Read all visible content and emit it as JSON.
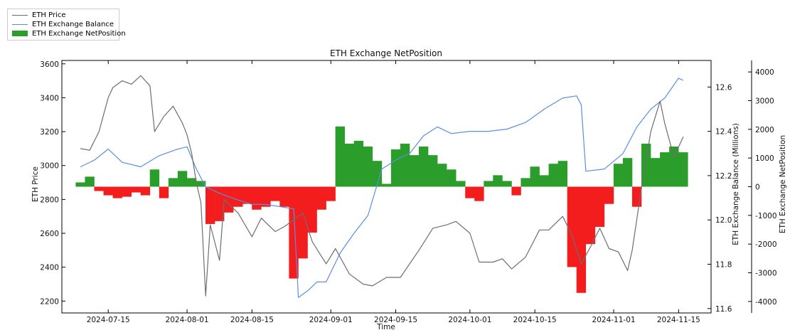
{
  "chart_data": {
    "type": "line",
    "title": "ETH Exchange NetPosition",
    "xlabel": "Time",
    "ylabel_left": "ETH Price",
    "ylabel_right1": "ETH Exchange Balance (Millions)",
    "ylabel_right2": "ETH Exchange NetPosition",
    "x_tick_labels": [
      "2024-07-15",
      "2024-08-01",
      "2024-08-15",
      "2024-09-01",
      "2024-09-15",
      "2024-10-01",
      "2024-10-15",
      "2024-11-01",
      "2024-11-15"
    ],
    "x_range": [
      "2024-07-05",
      "2024-11-22"
    ],
    "price_axis": {
      "range": [
        2130,
        3620
      ],
      "ticks": [
        2200,
        2400,
        2600,
        2800,
        3000,
        3200,
        3400,
        3600
      ]
    },
    "balance_axis": {
      "range": [
        11.58,
        12.72
      ],
      "ticks": [
        11.6,
        11.8,
        12.0,
        12.2,
        12.4,
        12.6
      ]
    },
    "netposition_axis": {
      "range": [
        -4400,
        4400
      ],
      "ticks": [
        -4000,
        -3000,
        -2000,
        -1000,
        0,
        1000,
        2000,
        3000,
        4000
      ]
    },
    "legend": {
      "placement": "top-left",
      "entries": [
        "ETH Price",
        "ETH Exchange Balance",
        "ETH Exchange NetPosition"
      ]
    },
    "colors": {
      "price": "#6e6e6e",
      "balance": "#5b8fe0",
      "positive": "#2a9d2a",
      "negative": "#f41d1d"
    },
    "series": [
      {
        "name": "ETH Price",
        "axis": "left",
        "x": [
          "2024-07-09",
          "2024-07-11",
          "2024-07-13",
          "2024-07-14",
          "2024-07-15",
          "2024-07-16",
          "2024-07-18",
          "2024-07-20",
          "2024-07-22",
          "2024-07-24",
          "2024-07-25",
          "2024-07-27",
          "2024-07-29",
          "2024-07-31",
          "2024-08-01",
          "2024-08-02",
          "2024-08-03",
          "2024-08-04",
          "2024-08-05",
          "2024-08-06",
          "2024-08-08",
          "2024-08-09",
          "2024-08-12",
          "2024-08-15",
          "2024-08-17",
          "2024-08-20",
          "2024-08-22",
          "2024-08-24",
          "2024-08-26",
          "2024-08-28",
          "2024-08-31",
          "2024-09-02",
          "2024-09-05",
          "2024-09-08",
          "2024-09-10",
          "2024-09-13",
          "2024-09-16",
          "2024-09-18",
          "2024-09-20",
          "2024-09-23",
          "2024-09-26",
          "2024-09-28",
          "2024-10-01",
          "2024-10-03",
          "2024-10-06",
          "2024-10-08",
          "2024-10-10",
          "2024-10-13",
          "2024-10-16",
          "2024-10-18",
          "2024-10-21",
          "2024-10-23",
          "2024-10-25",
          "2024-10-27",
          "2024-10-29",
          "2024-10-31",
          "2024-11-02",
          "2024-11-04",
          "2024-11-05",
          "2024-11-07",
          "2024-11-09",
          "2024-11-11",
          "2024-11-12",
          "2024-11-14",
          "2024-11-16"
        ],
        "y": [
          3100,
          3090,
          3200,
          3300,
          3400,
          3460,
          3500,
          3480,
          3530,
          3470,
          3200,
          3290,
          3350,
          3250,
          3180,
          3070,
          2900,
          2780,
          2230,
          2650,
          2440,
          2800,
          2720,
          2580,
          2690,
          2610,
          2640,
          2680,
          2720,
          2550,
          2420,
          2510,
          2360,
          2300,
          2290,
          2340,
          2340,
          2420,
          2500,
          2630,
          2650,
          2670,
          2600,
          2430,
          2430,
          2450,
          2390,
          2460,
          2620,
          2620,
          2700,
          2590,
          2420,
          2520,
          2630,
          2510,
          2490,
          2380,
          2500,
          2870,
          3200,
          3380,
          3250,
          3050,
          3170
        ]
      },
      {
        "name": "ETH Exchange Balance",
        "axis": "right1",
        "x": [
          "2024-07-09",
          "2024-07-12",
          "2024-07-15",
          "2024-07-18",
          "2024-07-22",
          "2024-07-26",
          "2024-07-30",
          "2024-08-01",
          "2024-08-03",
          "2024-08-05",
          "2024-08-08",
          "2024-08-12",
          "2024-08-15",
          "2024-08-18",
          "2024-08-21",
          "2024-08-24",
          "2024-08-25",
          "2024-08-27",
          "2024-08-29",
          "2024-08-31",
          "2024-09-03",
          "2024-09-06",
          "2024-09-09",
          "2024-09-12",
          "2024-09-15",
          "2024-09-18",
          "2024-09-21",
          "2024-09-24",
          "2024-09-27",
          "2024-10-01",
          "2024-10-05",
          "2024-10-09",
          "2024-10-13",
          "2024-10-17",
          "2024-10-21",
          "2024-10-24",
          "2024-10-25",
          "2024-10-26",
          "2024-10-30",
          "2024-11-03",
          "2024-11-06",
          "2024-11-09",
          "2024-11-12",
          "2024-11-15",
          "2024-11-16"
        ],
        "y": [
          12.24,
          12.27,
          12.32,
          12.26,
          12.24,
          12.29,
          12.32,
          12.33,
          12.23,
          12.15,
          12.12,
          12.09,
          12.07,
          12.07,
          12.06,
          12.05,
          11.65,
          11.68,
          11.72,
          11.72,
          11.85,
          11.94,
          12.02,
          12.23,
          12.27,
          12.3,
          12.38,
          12.42,
          12.39,
          12.4,
          12.4,
          12.41,
          12.44,
          12.5,
          12.55,
          12.56,
          12.52,
          12.22,
          12.23,
          12.3,
          12.42,
          12.5,
          12.55,
          12.64,
          12.63
        ]
      },
      {
        "name": "ETH Exchange NetPosition",
        "axis": "right2",
        "type": "bar",
        "x": [
          "2024-07-09",
          "2024-07-11",
          "2024-07-13",
          "2024-07-15",
          "2024-07-17",
          "2024-07-19",
          "2024-07-21",
          "2024-07-23",
          "2024-07-25",
          "2024-07-27",
          "2024-07-29",
          "2024-07-31",
          "2024-08-02",
          "2024-08-04",
          "2024-08-06",
          "2024-08-08",
          "2024-08-10",
          "2024-08-12",
          "2024-08-14",
          "2024-08-16",
          "2024-08-18",
          "2024-08-20",
          "2024-08-22",
          "2024-08-24",
          "2024-08-26",
          "2024-08-28",
          "2024-08-30",
          "2024-09-01",
          "2024-09-03",
          "2024-09-05",
          "2024-09-07",
          "2024-09-09",
          "2024-09-11",
          "2024-09-13",
          "2024-09-15",
          "2024-09-17",
          "2024-09-19",
          "2024-09-21",
          "2024-09-23",
          "2024-09-25",
          "2024-09-27",
          "2024-09-29",
          "2024-10-01",
          "2024-10-03",
          "2024-10-05",
          "2024-10-07",
          "2024-10-09",
          "2024-10-11",
          "2024-10-13",
          "2024-10-15",
          "2024-10-17",
          "2024-10-19",
          "2024-10-21",
          "2024-10-23",
          "2024-10-25",
          "2024-10-27",
          "2024-10-29",
          "2024-10-31",
          "2024-11-02",
          "2024-11-04",
          "2024-11-06",
          "2024-11-08",
          "2024-11-10",
          "2024-11-12",
          "2024-11-14",
          "2024-11-16"
        ],
        "values": [
          150,
          350,
          -150,
          -300,
          -400,
          -350,
          -200,
          -300,
          600,
          -400,
          300,
          550,
          300,
          200,
          -1300,
          -1200,
          -900,
          -700,
          -600,
          -800,
          -700,
          -500,
          -700,
          -3200,
          -2500,
          -1600,
          -800,
          -500,
          2100,
          1500,
          1600,
          1400,
          900,
          100,
          1300,
          1500,
          1100,
          1400,
          1100,
          800,
          600,
          200,
          -400,
          -500,
          200,
          400,
          200,
          -300,
          300,
          700,
          400,
          800,
          900,
          -2800,
          -3700,
          -2000,
          -1400,
          -600,
          800,
          1000,
          -700,
          1500,
          1000,
          1200,
          1400,
          1200
        ]
      }
    ]
  }
}
